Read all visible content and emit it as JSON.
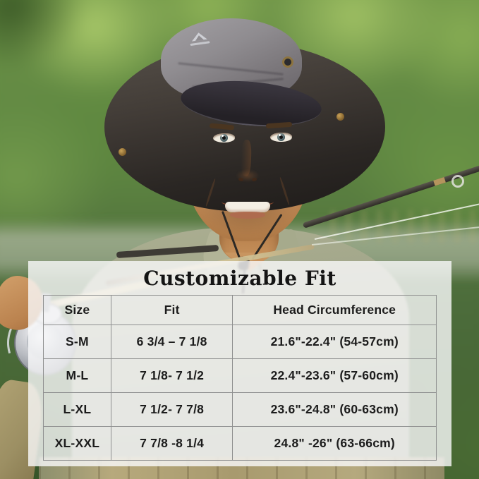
{
  "size_chart": {
    "title": "Customizable Fit",
    "columns": [
      "Size",
      "Fit",
      "Head Circumference"
    ],
    "rows": [
      [
        "S-M",
        "6 3/4 – 7 1/8",
        "21.6\"-22.4\" (54-57cm)"
      ],
      [
        "M-L",
        "7 1/8- 7 1/2",
        "22.4\"-23.6\" (57-60cm)"
      ],
      [
        "L-XL",
        "7 1/2-  7 7/8",
        "23.6\"-24.8\" (60-63cm)"
      ],
      [
        "XL-XXL",
        "7 7/8 -8 1/4",
        "24.8\" -26\" (63-66cm)"
      ]
    ]
  },
  "chart_data": {
    "type": "table",
    "title": "Customizable Fit",
    "columns": [
      "Size",
      "Fit",
      "Head Circumference"
    ],
    "rows": [
      [
        "S-M",
        "6 3/4 – 7 1/8",
        "21.6\"-22.4\" (54-57cm)"
      ],
      [
        "M-L",
        "7 1/8- 7 1/2",
        "22.4\"-23.6\" (57-60cm)"
      ],
      [
        "L-XL",
        "7 1/2-  7 7/8",
        "23.6\"-24.8\" (60-63cm)"
      ],
      [
        "XL-XXL",
        "7 7/8 -8 1/4",
        "24.8\" -26\" (63-66cm)"
      ]
    ]
  },
  "colors": {
    "overlay_background": "#fafafb",
    "table_border": "#8f9090",
    "table_text": "#1c1c1c",
    "hat_crown_gray": "#8f8c90",
    "hat_brim_charcoal": "#2b2724",
    "shirt_olive": "#9da286",
    "foliage_green": "#5f8742",
    "water_sage": "#97a786",
    "skin_tan": "#cd9763",
    "brass_snap": "#caa258",
    "reel_silver": "#b9bcc2",
    "rod_dark": "#2e2b26"
  }
}
